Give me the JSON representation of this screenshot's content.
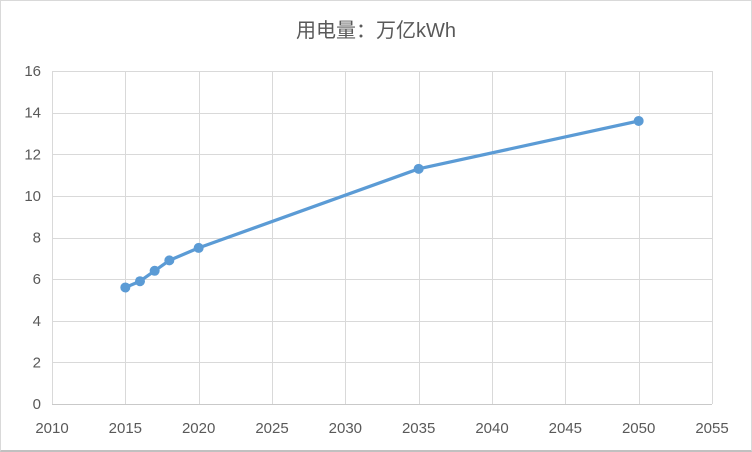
{
  "chart_data": {
    "type": "line",
    "title": "用电量：万亿kWh",
    "x": [
      2015,
      2016,
      2017,
      2018,
      2020,
      2035,
      2050
    ],
    "series": [
      {
        "name": "用电量",
        "values": [
          5.6,
          5.9,
          6.4,
          6.9,
          7.5,
          11.3,
          13.6
        ]
      }
    ],
    "xlabel": "",
    "ylabel": "",
    "xlim": [
      2010,
      2055
    ],
    "ylim": [
      0,
      16
    ],
    "x_ticks": [
      2010,
      2015,
      2020,
      2025,
      2030,
      2035,
      2040,
      2045,
      2050,
      2055
    ],
    "y_ticks": [
      0,
      2,
      4,
      6,
      8,
      10,
      12,
      14,
      16
    ],
    "grid": true,
    "legend": false,
    "marker": "circle"
  },
  "colors": {
    "line": "#5b9bd5",
    "marker": "#5b9bd5",
    "grid": "#d9d9d9",
    "axis": "#c9c9c9",
    "text": "#595959",
    "background": "#ffffff",
    "frame_border": "#d9d9d9"
  }
}
